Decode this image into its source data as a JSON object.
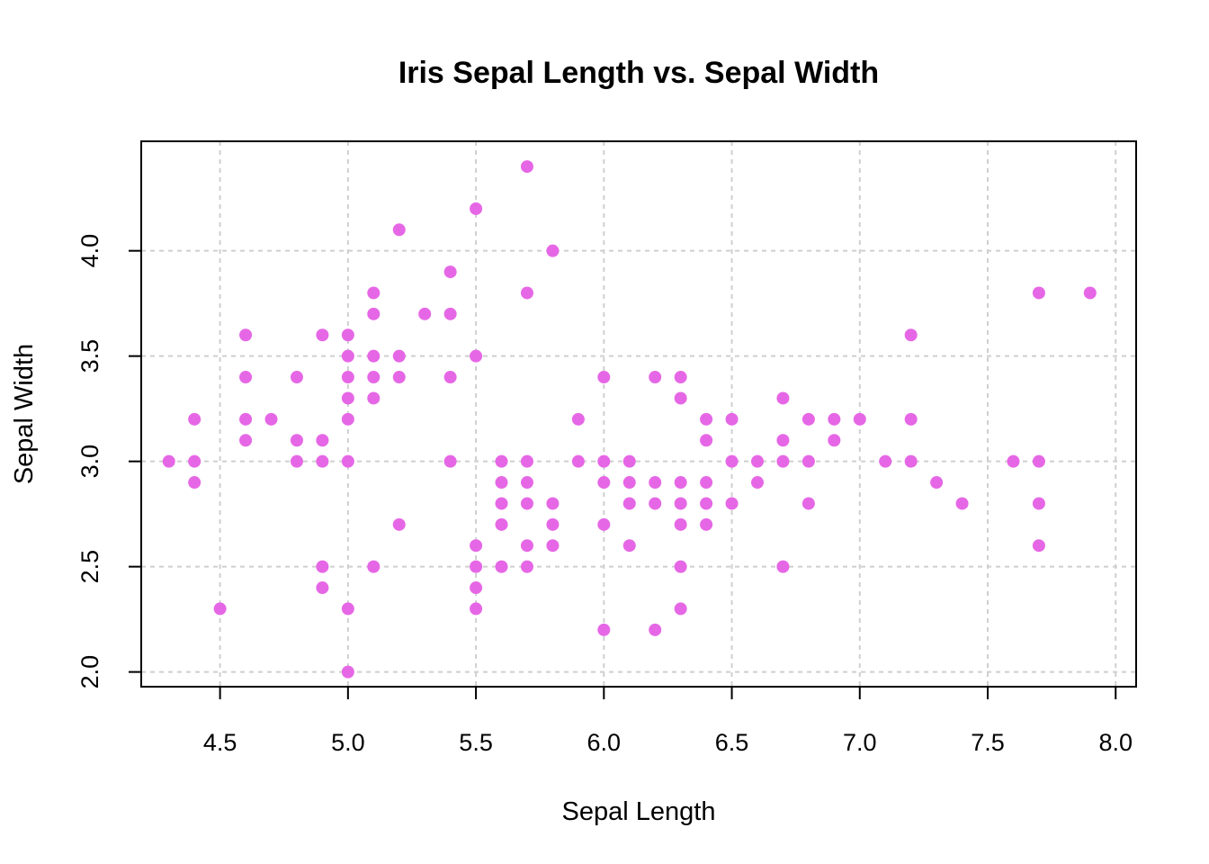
{
  "chart_data": {
    "type": "scatter",
    "title": "Iris Sepal Length vs. Sepal Width",
    "xlabel": "Sepal Length",
    "ylabel": "Sepal Width",
    "xlim": [
      4.192,
      8.08
    ],
    "ylim": [
      1.93,
      4.52
    ],
    "xticks": [
      "4.5",
      "5.0",
      "5.5",
      "6.0",
      "6.5",
      "7.0",
      "7.5",
      "8.0"
    ],
    "yticks": [
      "2.0",
      "2.5",
      "3.0",
      "3.5",
      "4.0"
    ],
    "grid": true,
    "point_color": "#e667e6",
    "points": [
      [
        4.3,
        3.0
      ],
      [
        4.4,
        3.2
      ],
      [
        4.4,
        3.0
      ],
      [
        4.4,
        2.9
      ],
      [
        4.5,
        2.3
      ],
      [
        4.6,
        3.6
      ],
      [
        4.6,
        3.4
      ],
      [
        4.6,
        3.2
      ],
      [
        4.6,
        3.1
      ],
      [
        4.7,
        3.2
      ],
      [
        4.8,
        3.4
      ],
      [
        4.8,
        3.1
      ],
      [
        4.8,
        3.0
      ],
      [
        4.9,
        3.6
      ],
      [
        4.9,
        3.1
      ],
      [
        4.9,
        3.0
      ],
      [
        4.9,
        2.5
      ],
      [
        4.9,
        2.4
      ],
      [
        5.0,
        3.6
      ],
      [
        5.0,
        3.5
      ],
      [
        5.0,
        3.4
      ],
      [
        5.0,
        3.3
      ],
      [
        5.0,
        3.2
      ],
      [
        5.0,
        3.0
      ],
      [
        5.0,
        2.3
      ],
      [
        5.0,
        2.0
      ],
      [
        5.1,
        3.8
      ],
      [
        5.1,
        3.7
      ],
      [
        5.1,
        3.5
      ],
      [
        5.1,
        3.4
      ],
      [
        5.1,
        3.3
      ],
      [
        5.1,
        2.5
      ],
      [
        5.2,
        4.1
      ],
      [
        5.2,
        3.5
      ],
      [
        5.2,
        3.4
      ],
      [
        5.2,
        2.7
      ],
      [
        5.3,
        3.7
      ],
      [
        5.4,
        3.9
      ],
      [
        5.4,
        3.7
      ],
      [
        5.4,
        3.4
      ],
      [
        5.4,
        3.0
      ],
      [
        5.5,
        4.2
      ],
      [
        5.5,
        3.5
      ],
      [
        5.5,
        2.6
      ],
      [
        5.5,
        2.5
      ],
      [
        5.5,
        2.4
      ],
      [
        5.5,
        2.3
      ],
      [
        5.6,
        3.0
      ],
      [
        5.6,
        2.9
      ],
      [
        5.6,
        2.8
      ],
      [
        5.6,
        2.7
      ],
      [
        5.6,
        2.5
      ],
      [
        5.7,
        4.4
      ],
      [
        5.7,
        3.8
      ],
      [
        5.7,
        3.0
      ],
      [
        5.7,
        2.9
      ],
      [
        5.7,
        2.8
      ],
      [
        5.7,
        2.6
      ],
      [
        5.7,
        2.5
      ],
      [
        5.8,
        4.0
      ],
      [
        5.8,
        2.8
      ],
      [
        5.8,
        2.7
      ],
      [
        5.8,
        2.6
      ],
      [
        5.9,
        3.2
      ],
      [
        5.9,
        3.0
      ],
      [
        6.0,
        3.4
      ],
      [
        6.0,
        3.0
      ],
      [
        6.0,
        2.9
      ],
      [
        6.0,
        2.7
      ],
      [
        6.0,
        2.2
      ],
      [
        6.1,
        3.0
      ],
      [
        6.1,
        2.9
      ],
      [
        6.1,
        2.8
      ],
      [
        6.1,
        2.6
      ],
      [
        6.2,
        3.4
      ],
      [
        6.2,
        2.9
      ],
      [
        6.2,
        2.8
      ],
      [
        6.2,
        2.2
      ],
      [
        6.3,
        3.4
      ],
      [
        6.3,
        3.3
      ],
      [
        6.3,
        2.9
      ],
      [
        6.3,
        2.8
      ],
      [
        6.3,
        2.7
      ],
      [
        6.3,
        2.5
      ],
      [
        6.3,
        2.3
      ],
      [
        6.4,
        3.2
      ],
      [
        6.4,
        3.1
      ],
      [
        6.4,
        2.9
      ],
      [
        6.4,
        2.8
      ],
      [
        6.4,
        2.7
      ],
      [
        6.5,
        3.2
      ],
      [
        6.5,
        3.0
      ],
      [
        6.5,
        2.8
      ],
      [
        6.6,
        3.0
      ],
      [
        6.6,
        2.9
      ],
      [
        6.7,
        3.3
      ],
      [
        6.7,
        3.1
      ],
      [
        6.7,
        3.0
      ],
      [
        6.7,
        2.5
      ],
      [
        6.8,
        3.2
      ],
      [
        6.8,
        3.0
      ],
      [
        6.8,
        2.8
      ],
      [
        6.9,
        3.2
      ],
      [
        6.9,
        3.1
      ],
      [
        7.0,
        3.2
      ],
      [
        7.1,
        3.0
      ],
      [
        7.2,
        3.6
      ],
      [
        7.2,
        3.2
      ],
      [
        7.2,
        3.0
      ],
      [
        7.3,
        2.9
      ],
      [
        7.4,
        2.8
      ],
      [
        7.6,
        3.0
      ],
      [
        7.7,
        3.8
      ],
      [
        7.7,
        3.0
      ],
      [
        7.7,
        2.8
      ],
      [
        7.7,
        2.6
      ],
      [
        7.9,
        3.8
      ]
    ]
  }
}
